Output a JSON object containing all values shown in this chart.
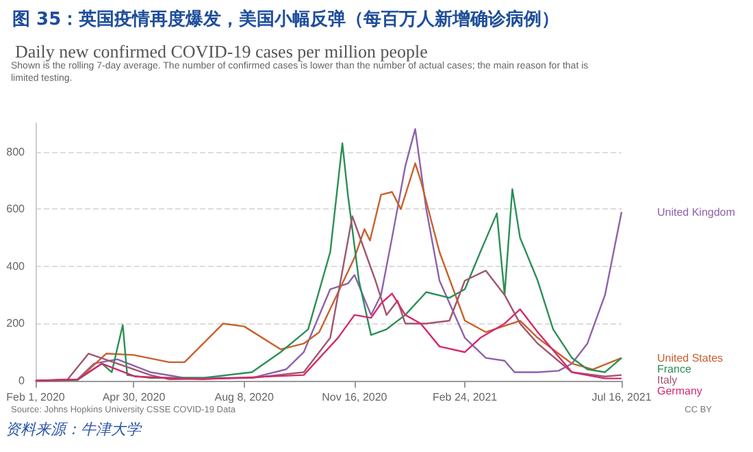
{
  "chart_data": {
    "type": "line",
    "title": "图 35：英国疫情再度爆发，美国小幅反弹（每百万人新增确诊病例）",
    "subtitle": "Daily new confirmed COVID-19 cases per million people",
    "annotations": [
      "Shown is the rolling 7-day average. The number of confirmed cases is lower than the number of actual cases; the main reason for that is limited testing.",
      "Source: Johns Hopkins University CSSE COVID-19 Data",
      "CC BY",
      "资料来源：牛津大学"
    ],
    "xlim": [
      "2020-02-01",
      "2021-07-16"
    ],
    "xticks": [
      {
        "value": "2020-02-01",
        "label": "Feb 1, 2020"
      },
      {
        "value": "2020-04-30",
        "label": "Apr 30, 2020"
      },
      {
        "value": "2020-08-08",
        "label": "Aug 8, 2020"
      },
      {
        "value": "2020-11-16",
        "label": "Nov 16, 2020"
      },
      {
        "value": "2021-02-24",
        "label": "Feb 24, 2021"
      },
      {
        "value": "2021-07-16",
        "label": "Jul 16, 2021"
      }
    ],
    "ylim": [
      0,
      900
    ],
    "yticks": [
      0,
      200,
      400,
      600,
      800
    ],
    "grid": "y",
    "legend": false,
    "line_style": "solid",
    "marker": "none",
    "series": [
      {
        "name": "United Kingdom",
        "color": "#8c62aa",
        "x": [
          "2020-02-01",
          "2020-03-10",
          "2020-03-25",
          "2020-04-15",
          "2020-05-15",
          "2020-06-15",
          "2020-08-15",
          "2020-09-15",
          "2020-10-01",
          "2020-10-25",
          "2020-11-10",
          "2020-11-16",
          "2020-12-01",
          "2020-12-10",
          "2020-12-20",
          "2021-01-01",
          "2021-01-10",
          "2021-01-20",
          "2021-02-01",
          "2021-02-24",
          "2021-03-15",
          "2021-04-01",
          "2021-04-10",
          "2021-05-01",
          "2021-05-20",
          "2021-06-01",
          "2021-06-15",
          "2021-07-01",
          "2021-07-16"
        ],
        "values": [
          0,
          5,
          60,
          75,
          30,
          10,
          10,
          40,
          100,
          320,
          340,
          370,
          230,
          300,
          500,
          750,
          880,
          600,
          350,
          150,
          80,
          70,
          30,
          30,
          35,
          60,
          130,
          300,
          590
        ]
      },
      {
        "name": "United States",
        "color": "#c8602c",
        "x": [
          "2020-02-01",
          "2020-03-10",
          "2020-04-05",
          "2020-04-30",
          "2020-06-01",
          "2020-06-15",
          "2020-07-20",
          "2020-08-08",
          "2020-09-10",
          "2020-10-01",
          "2020-10-15",
          "2020-11-16",
          "2020-11-25",
          "2020-11-30",
          "2020-12-10",
          "2020-12-20",
          "2020-12-28",
          "2021-01-10",
          "2021-01-15",
          "2021-02-01",
          "2021-02-24",
          "2021-03-15",
          "2021-04-15",
          "2021-05-01",
          "2021-06-01",
          "2021-06-20",
          "2021-07-16"
        ],
        "values": [
          0,
          2,
          95,
          90,
          65,
          65,
          200,
          190,
          110,
          130,
          170,
          430,
          530,
          490,
          650,
          660,
          600,
          760,
          700,
          450,
          210,
          170,
          210,
          150,
          60,
          40,
          80
        ]
      },
      {
        "name": "France",
        "color": "#2a8f55",
        "x": [
          "2020-02-01",
          "2020-03-10",
          "2020-04-01",
          "2020-04-10",
          "2020-04-20",
          "2020-04-24",
          "2020-05-15",
          "2020-07-01",
          "2020-08-15",
          "2020-09-10",
          "2020-10-05",
          "2020-10-25",
          "2020-11-05",
          "2020-11-10",
          "2020-11-20",
          "2020-12-01",
          "2020-12-15",
          "2021-01-01",
          "2021-01-20",
          "2021-02-10",
          "2021-02-24",
          "2021-03-10",
          "2021-03-25",
          "2021-04-01",
          "2021-04-08",
          "2021-04-15",
          "2021-05-01",
          "2021-05-15",
          "2021-06-01",
          "2021-06-15",
          "2021-07-01",
          "2021-07-16"
        ],
        "values": [
          0,
          3,
          60,
          30,
          195,
          20,
          10,
          10,
          30,
          100,
          180,
          450,
          830,
          650,
          350,
          160,
          180,
          230,
          310,
          290,
          320,
          450,
          585,
          300,
          670,
          500,
          350,
          180,
          80,
          40,
          30,
          80
        ]
      },
      {
        "name": "Italy",
        "color": "#a0566c",
        "x": [
          "2020-02-01",
          "2020-03-01",
          "2020-03-20",
          "2020-04-15",
          "2020-05-15",
          "2020-06-01",
          "2020-08-15",
          "2020-10-01",
          "2020-10-25",
          "2020-11-14",
          "2020-12-05",
          "2020-12-15",
          "2020-12-25",
          "2021-01-01",
          "2021-01-20",
          "2021-02-10",
          "2021-02-24",
          "2021-03-15",
          "2021-04-01",
          "2021-04-15",
          "2021-05-01",
          "2021-06-01",
          "2021-07-01",
          "2021-07-16"
        ],
        "values": [
          0,
          5,
          95,
          60,
          20,
          5,
          10,
          30,
          150,
          575,
          350,
          230,
          280,
          200,
          200,
          210,
          350,
          385,
          300,
          200,
          130,
          30,
          15,
          20
        ]
      },
      {
        "name": "Germany",
        "color": "#d6286e",
        "x": [
          "2020-02-01",
          "2020-03-10",
          "2020-04-01",
          "2020-05-01",
          "2020-07-01",
          "2020-10-01",
          "2020-11-01",
          "2020-11-16",
          "2020-12-01",
          "2020-12-10",
          "2020-12-20",
          "2021-01-01",
          "2021-01-15",
          "2021-02-01",
          "2021-02-24",
          "2021-03-10",
          "2021-04-01",
          "2021-04-15",
          "2021-05-01",
          "2021-06-01",
          "2021-07-01",
          "2021-07-16"
        ],
        "values": [
          0,
          5,
          60,
          15,
          5,
          20,
          150,
          230,
          220,
          270,
          305,
          230,
          200,
          120,
          100,
          150,
          200,
          250,
          170,
          30,
          8,
          8
        ]
      }
    ]
  }
}
